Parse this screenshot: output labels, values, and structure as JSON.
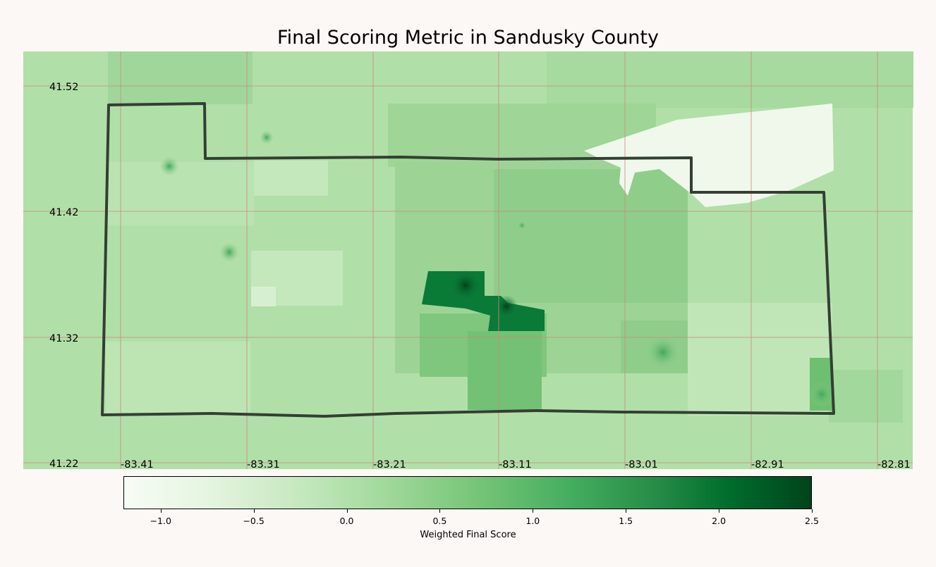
{
  "title": "Final Scoring Metric in Sandusky County",
  "map": {
    "y_ticks": [
      "41.52",
      "41.42",
      "41.32",
      "41.22"
    ],
    "x_ticks": [
      "-83.41",
      "-83.31",
      "-83.21",
      "-83.11",
      "-83.01",
      "-82.91",
      "-82.81"
    ],
    "base_color": "#b1dfa8",
    "county_border_color": "#333f33",
    "grid_color": "#c98a7a"
  },
  "colorbar": {
    "label": "Weighted Final Score",
    "min": -1.2,
    "max": 2.5,
    "ticks": [
      "−1.0",
      "−0.5",
      "0.0",
      "0.5",
      "1.0",
      "1.5",
      "2.0",
      "2.5"
    ],
    "tick_values": [
      -1.0,
      -0.5,
      0.0,
      0.5,
      1.0,
      1.5,
      2.0,
      2.5
    ],
    "colormap": "Greens"
  }
}
